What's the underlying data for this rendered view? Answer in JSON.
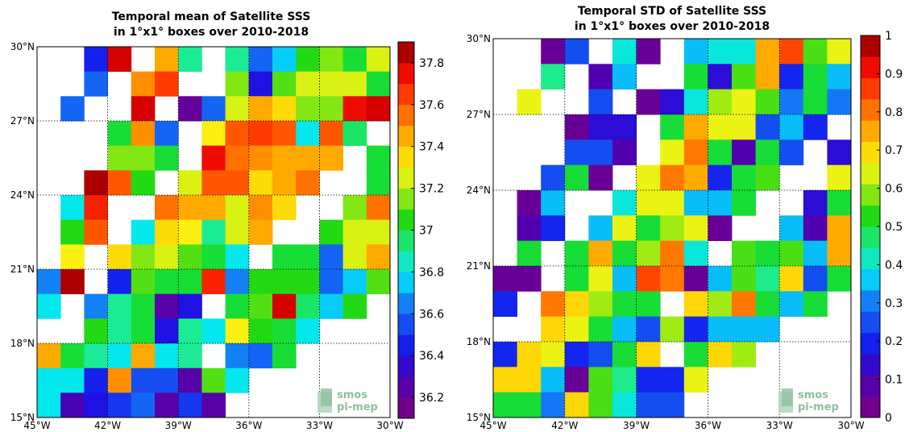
{
  "chart_data": [
    {
      "type": "heatmap",
      "title": [
        "Temporal mean of Satellite SSS",
        "in 1°x1° boxes over 2010-2018"
      ],
      "xlim": [
        -45,
        -30
      ],
      "ylim": [
        15,
        30
      ],
      "x_ticks": [
        "45°W",
        "42°W",
        "39°W",
        "36°W",
        "33°W",
        "30°W"
      ],
      "y_ticks": [
        "15°N",
        "18°N",
        "21°N",
        "24°N",
        "27°N",
        "30°N"
      ],
      "colorbar": {
        "min": 36.1,
        "max": 37.9,
        "ticks": [
          "36.2",
          "36.4",
          "36.6",
          "36.8",
          "37",
          "37.2",
          "37.4",
          "37.6",
          "37.8"
        ],
        "tick_values": [
          36.2,
          36.4,
          36.6,
          36.8,
          37.0,
          37.2,
          37.4,
          37.6,
          37.8
        ]
      },
      "grid": true,
      "logo": [
        "smos",
        "pi-mep"
      ],
      "rows_north_to_south": [
        [
          null,
          null,
          36.45,
          37.8,
          null,
          37.45,
          36.9,
          null,
          36.9,
          36.6,
          36.75,
          37.05,
          37.15,
          37.0,
          37.25
        ],
        [
          null,
          null,
          36.6,
          null,
          37.5,
          37.65,
          null,
          null,
          37.15,
          36.4,
          37.1,
          37.25,
          37.25,
          37.25,
          37.0
        ],
        [
          null,
          36.6,
          null,
          null,
          37.8,
          null,
          36.2,
          36.6,
          37.25,
          37.45,
          37.35,
          37.15,
          37.15,
          37.75,
          37.8
        ],
        [
          null,
          null,
          null,
          37.0,
          37.5,
          36.6,
          null,
          37.3,
          37.6,
          37.65,
          37.6,
          36.8,
          37.6,
          36.95,
          null
        ],
        [
          null,
          null,
          null,
          37.15,
          37.15,
          37.0,
          null,
          37.75,
          37.55,
          37.5,
          37.45,
          37.45,
          37.45,
          null,
          37.0
        ],
        [
          null,
          null,
          37.85,
          37.6,
          37.05,
          null,
          37.25,
          37.6,
          37.6,
          37.35,
          37.45,
          37.55,
          null,
          null,
          37.0
        ],
        [
          null,
          36.8,
          37.7,
          null,
          null,
          37.55,
          37.45,
          37.45,
          37.25,
          37.5,
          37.35,
          null,
          null,
          37.15,
          37.55
        ],
        [
          null,
          37.05,
          37.6,
          null,
          36.8,
          37.35,
          37.3,
          36.9,
          37.25,
          37.45,
          null,
          null,
          37.05,
          37.25,
          37.25
        ],
        [
          null,
          37.3,
          null,
          37.35,
          37.15,
          37.25,
          37.1,
          37.0,
          36.8,
          null,
          37.0,
          37.0,
          36.6,
          37.25,
          37.45
        ],
        [
          36.65,
          37.85,
          null,
          36.45,
          37.1,
          37.0,
          37.0,
          37.7,
          36.65,
          37.05,
          37.05,
          37.05,
          36.6,
          36.75,
          37.1
        ],
        [
          36.8,
          null,
          36.65,
          36.9,
          37.0,
          36.25,
          36.4,
          null,
          37.0,
          37.1,
          37.8,
          36.95,
          36.75,
          37.05,
          null
        ],
        [
          null,
          null,
          37.05,
          36.9,
          37.0,
          36.4,
          36.9,
          36.8,
          37.3,
          37.05,
          37.0,
          36.8,
          null,
          null,
          null
        ],
        [
          37.45,
          37.0,
          36.9,
          36.8,
          37.45,
          36.8,
          36.9,
          null,
          36.65,
          36.6,
          37.0,
          null,
          null,
          null,
          null
        ],
        [
          36.8,
          36.8,
          36.45,
          37.5,
          36.55,
          36.55,
          36.25,
          37.1,
          36.8,
          null,
          null,
          null,
          null,
          null,
          null
        ],
        [
          36.8,
          36.3,
          36.4,
          36.5,
          36.6,
          36.25,
          36.5,
          36.25,
          null,
          null,
          null,
          null,
          null,
          null,
          null
        ]
      ]
    },
    {
      "type": "heatmap",
      "title": [
        "Temporal STD of Satellite SSS",
        "in 1°x1° boxes over 2010-2018"
      ],
      "xlim": [
        -45,
        -30
      ],
      "ylim": [
        15,
        30
      ],
      "x_ticks": [
        "45°W",
        "42°W",
        "39°W",
        "36°W",
        "33°W",
        "30°W"
      ],
      "y_ticks": [
        "15°N",
        "18°N",
        "21°N",
        "24°N",
        "27°N",
        "30°N"
      ],
      "colorbar": {
        "min": 0,
        "max": 1,
        "ticks": [
          "0",
          "0.1",
          "0.2",
          "0.3",
          "0.4",
          "0.5",
          "0.6",
          "0.7",
          "0.8",
          "0.9",
          "1"
        ],
        "tick_values": [
          0,
          0.1,
          0.2,
          0.3,
          0.4,
          0.5,
          0.6,
          0.7,
          0.8,
          0.9,
          1.0
        ]
      },
      "grid": true,
      "logo": [
        "smos",
        "pi-mep"
      ],
      "rows_north_to_south": [
        [
          null,
          null,
          0.05,
          0.25,
          null,
          0.4,
          0.05,
          null,
          0.35,
          0.4,
          0.4,
          0.75,
          0.85,
          0.55,
          0.65
        ],
        [
          null,
          null,
          0.45,
          null,
          0.1,
          0.35,
          null,
          null,
          0.5,
          0.15,
          0.55,
          0.75,
          0.2,
          0.5,
          0.35
        ],
        [
          null,
          0.65,
          null,
          null,
          0.25,
          null,
          0.05,
          0.15,
          0.4,
          0.6,
          0.65,
          0.55,
          0.3,
          0.5,
          0.3
        ],
        [
          null,
          null,
          null,
          0.05,
          0.15,
          0.15,
          null,
          0.5,
          0.75,
          0.65,
          0.65,
          0.25,
          0.35,
          0.2,
          null
        ],
        [
          null,
          null,
          null,
          0.25,
          0.25,
          0.1,
          null,
          0.65,
          0.8,
          0.5,
          0.1,
          0.5,
          0.25,
          null,
          0.15
        ],
        [
          null,
          null,
          0.25,
          0.5,
          0.05,
          null,
          0.65,
          0.8,
          0.75,
          0.2,
          0.5,
          0.55,
          null,
          null,
          0.65
        ],
        [
          null,
          0.05,
          0.35,
          null,
          null,
          0.4,
          0.65,
          0.65,
          0.35,
          0.35,
          0.5,
          null,
          null,
          0.15,
          0.5
        ],
        [
          null,
          0.1,
          0.2,
          null,
          0.35,
          0.65,
          0.5,
          0.6,
          0.65,
          0.05,
          null,
          null,
          0.35,
          0.1,
          0.75
        ],
        [
          null,
          0.5,
          null,
          0.5,
          0.75,
          0.5,
          0.6,
          0.8,
          0.4,
          null,
          0.55,
          0.5,
          0.55,
          0.35,
          0.75
        ],
        [
          0.05,
          0.05,
          null,
          0.5,
          0.65,
          0.35,
          0.85,
          0.8,
          0.05,
          0.35,
          0.55,
          0.45,
          0.7,
          0.25,
          0.5
        ],
        [
          0.2,
          null,
          0.8,
          0.7,
          0.6,
          0.5,
          0.5,
          null,
          0.7,
          0.6,
          0.8,
          0.5,
          0.35,
          0.5,
          null
        ],
        [
          null,
          null,
          0.7,
          0.65,
          0.5,
          0.35,
          0.25,
          0.6,
          0.2,
          0.35,
          0.35,
          0.35,
          null,
          null,
          null
        ],
        [
          0.2,
          0.7,
          0.65,
          0.2,
          0.25,
          0.5,
          0.7,
          null,
          0.5,
          0.7,
          0.6,
          null,
          null,
          null,
          null
        ],
        [
          0.7,
          0.7,
          0.35,
          0.05,
          0.55,
          0.45,
          0.2,
          0.2,
          0.65,
          null,
          null,
          null,
          null,
          null,
          null
        ],
        [
          0.5,
          0.5,
          0.3,
          0.7,
          0.55,
          0.4,
          0.25,
          0.25,
          null,
          null,
          null,
          null,
          null,
          null,
          null
        ]
      ]
    }
  ]
}
